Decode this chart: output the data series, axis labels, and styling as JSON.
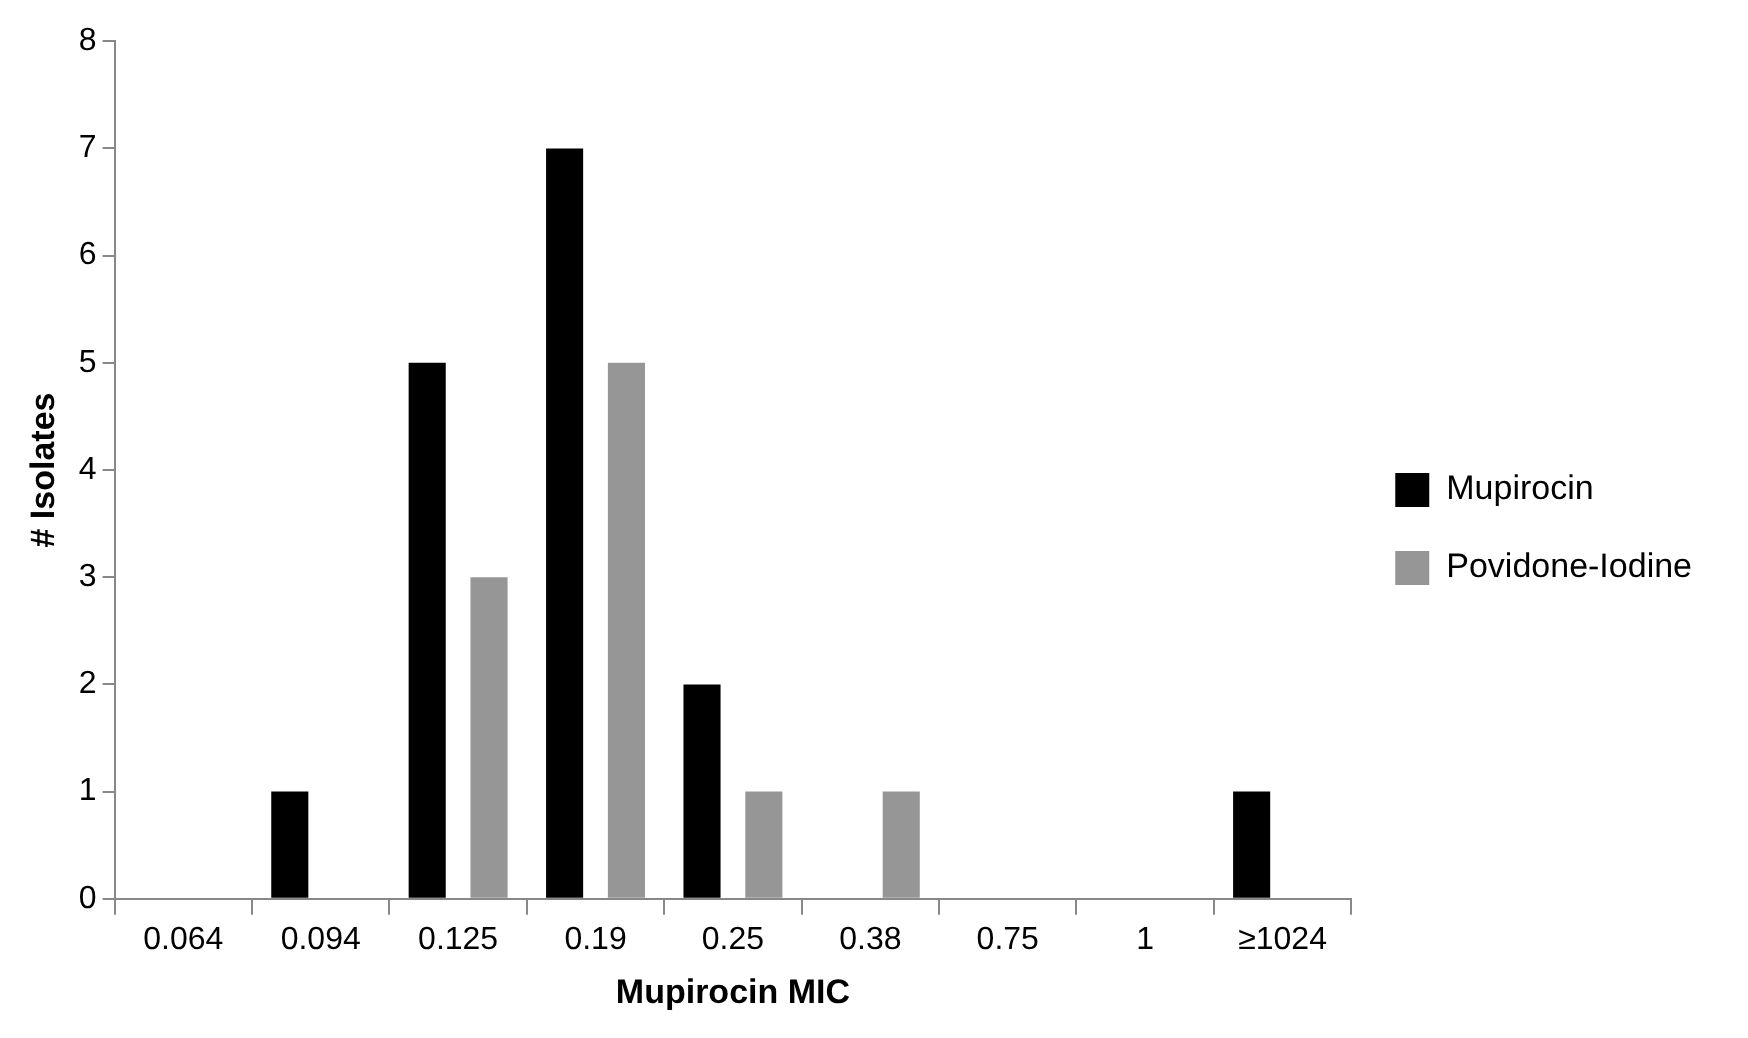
{
  "chart_data": {
    "type": "bar",
    "xlabel": "Mupirocin MIC",
    "ylabel": "# Isolates",
    "categories": [
      "0.064",
      "0.094",
      "0.125",
      "0.19",
      "0.25",
      "0.38",
      "0.75",
      "1",
      "≥1024"
    ],
    "series": [
      {
        "name": "Mupirocin",
        "color": "#000000",
        "values": [
          0,
          1,
          5,
          7,
          2,
          0,
          0,
          0,
          1
        ]
      },
      {
        "name": "Povidone-Iodine",
        "color": "#969696",
        "values": [
          0,
          0,
          3,
          5,
          1,
          1,
          0,
          0,
          0
        ]
      }
    ],
    "ylim": [
      0,
      8
    ],
    "yticks": [
      0,
      1,
      2,
      3,
      4,
      5,
      6,
      7,
      8
    ],
    "grid": false,
    "legend": "right"
  }
}
